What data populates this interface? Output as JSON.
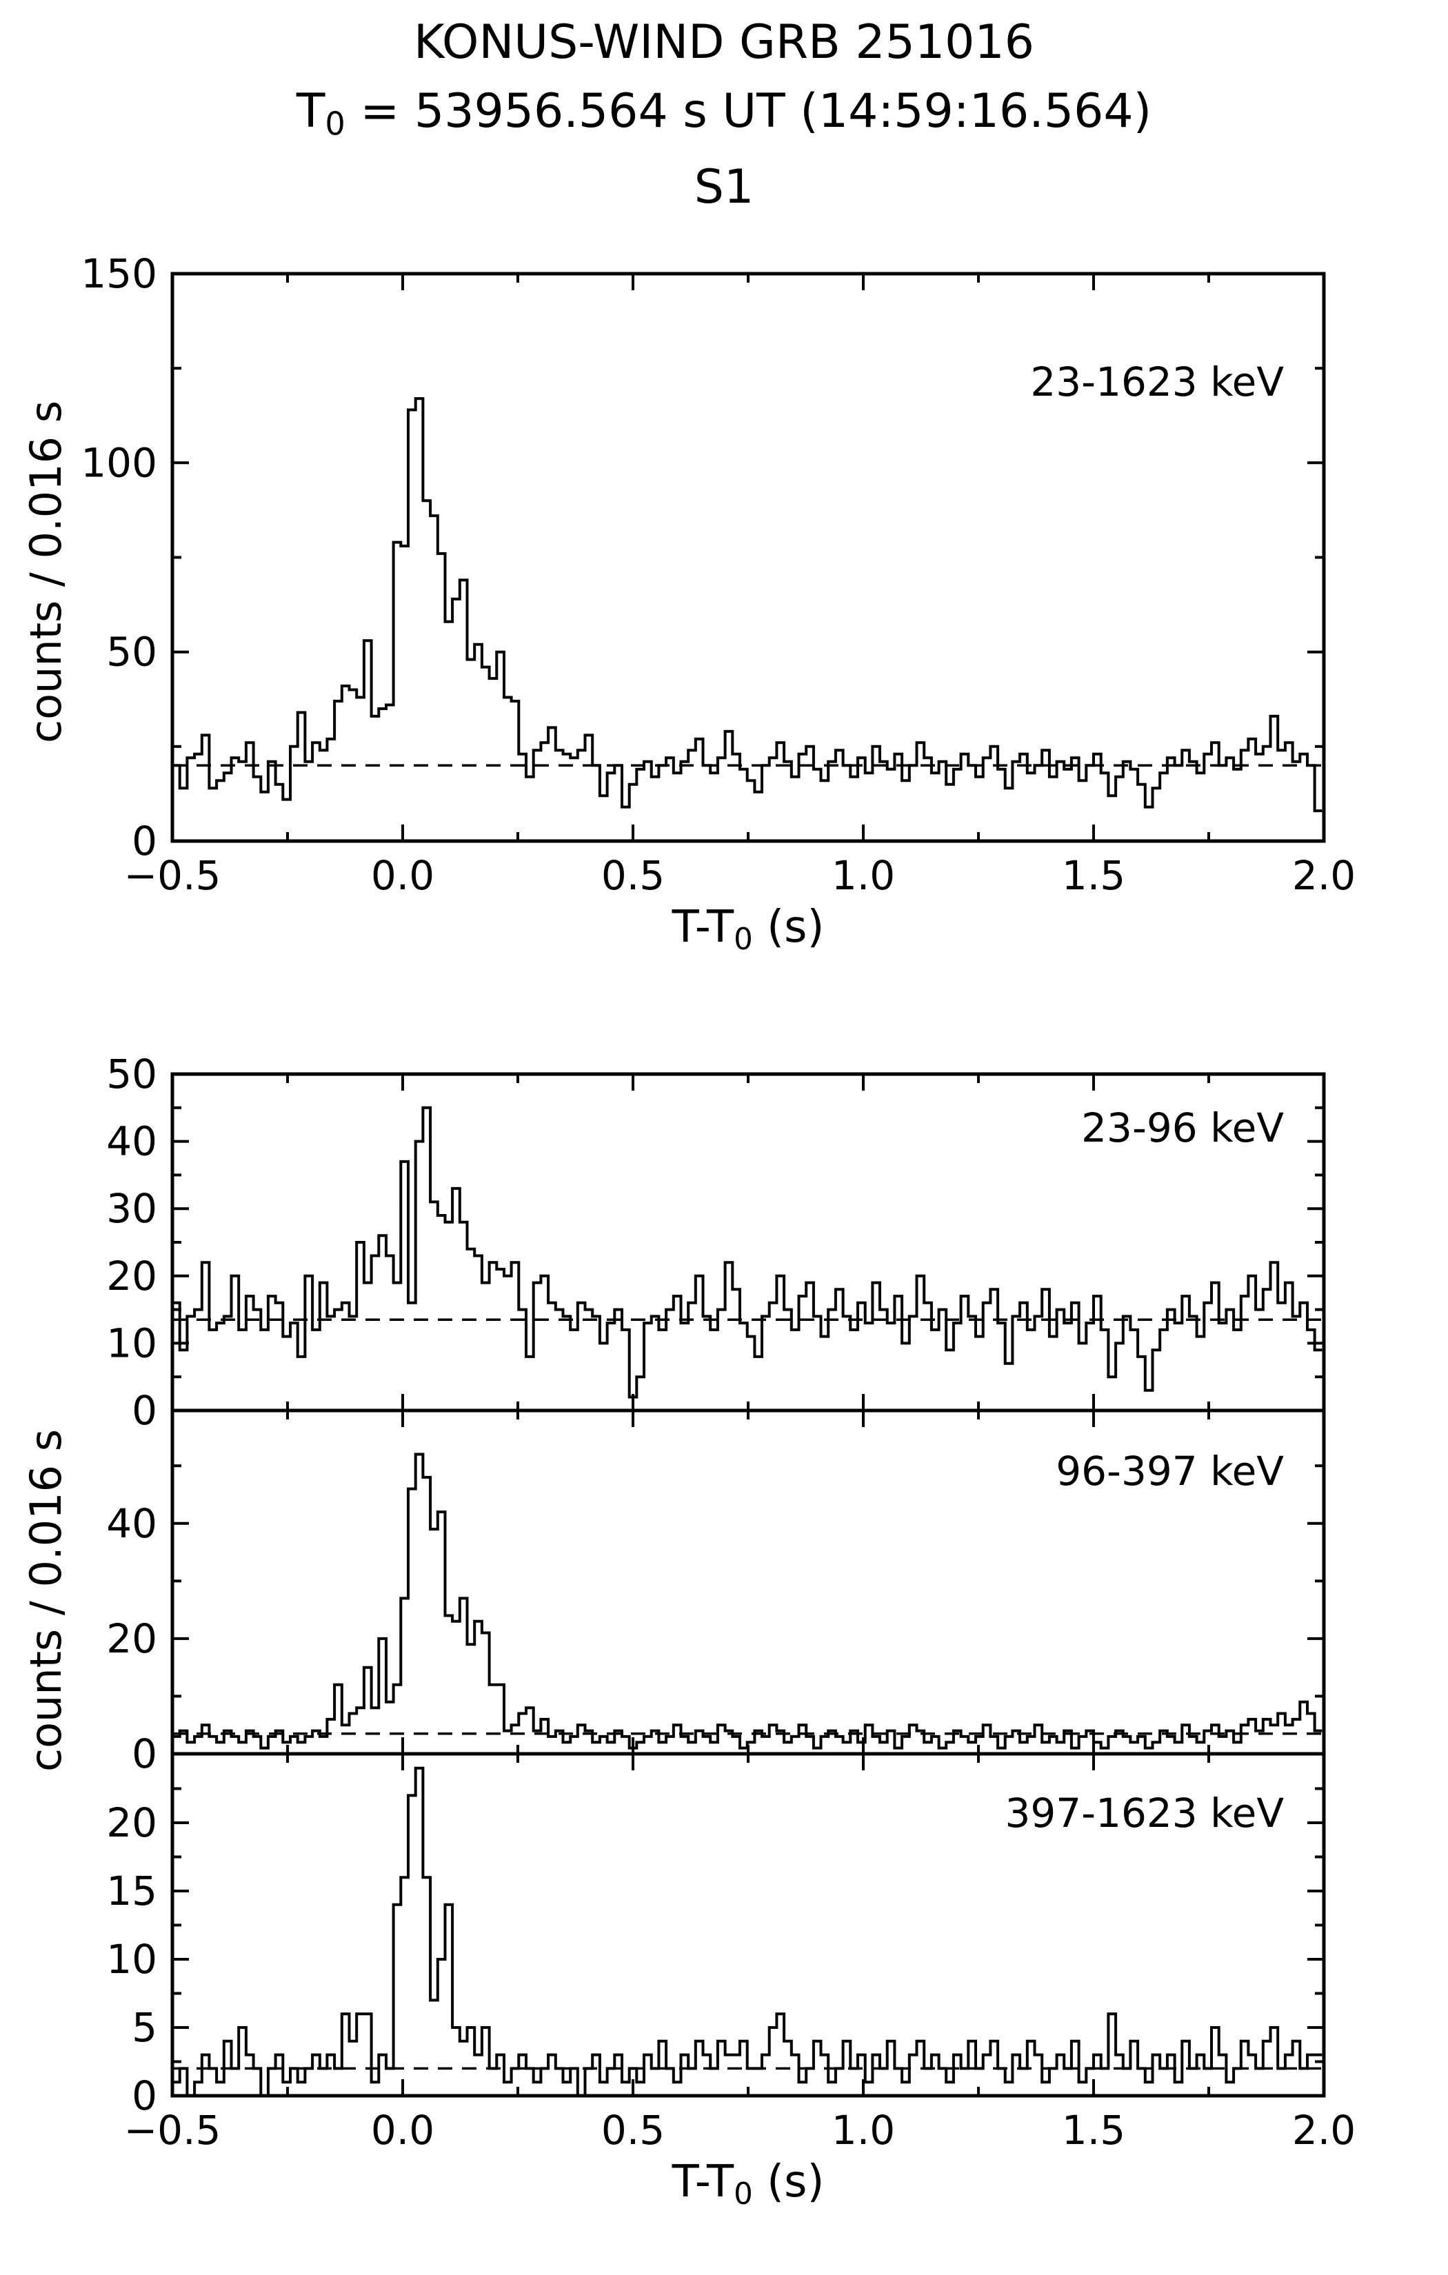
{
  "title": {
    "line1": "KONUS-WIND GRB 251016",
    "line2_prefix": "T",
    "line2_sub": "0",
    "line2_rest": " = 53956.564 s UT (14:59:16.564)",
    "line3": "S1"
  },
  "ylabel_top": "counts / 0.016 s",
  "ylabel_bottom": "counts / 0.016 s",
  "xlabel": {
    "prefix": "T-T",
    "sub": "0",
    "suffix": " (s)"
  },
  "colors": {
    "line": "#000000",
    "background": "#ffffff"
  },
  "chart_data": {
    "type": "line",
    "style": "step-histogram",
    "bin_width_s": 0.016,
    "t_start": -0.5,
    "xlim": [
      -0.5,
      2.0
    ],
    "xticks": [
      -0.5,
      0.0,
      0.5,
      1.0,
      1.5,
      2.0
    ],
    "xtick_labels": [
      "−0.5",
      "0.0",
      "0.5",
      "1.0",
      "1.5",
      "2.0"
    ],
    "xminor": [
      -0.25,
      0.25,
      0.75,
      1.25,
      1.75
    ],
    "xlabel": "T-T0 (s)",
    "ylabel": "counts / 0.016 s",
    "grid": false,
    "panels": [
      {
        "label": "23-1623 keV",
        "ylim": [
          0,
          150
        ],
        "yticks": [
          0,
          50,
          100,
          150
        ],
        "ytick_labels": [
          "0",
          "50",
          "100",
          "150"
        ],
        "yminor": [
          25,
          75,
          125
        ],
        "background_level": 20,
        "values": [
          20,
          14,
          22,
          23,
          28,
          14,
          16,
          18,
          22,
          21,
          26,
          17,
          13,
          21,
          15,
          11,
          25,
          34,
          21,
          26,
          24,
          27,
          37,
          41,
          40,
          38,
          53,
          33,
          35,
          36,
          79,
          78,
          114,
          117,
          90,
          86,
          76,
          58,
          64,
          69,
          48,
          52,
          46,
          43,
          50,
          38,
          37,
          23,
          17,
          24,
          26,
          30,
          24,
          23,
          22,
          24,
          28,
          20,
          12,
          18,
          20,
          9,
          15,
          19,
          21,
          17,
          20,
          22,
          18,
          21,
          24,
          27,
          20,
          18,
          22,
          29,
          23,
          19,
          16,
          13,
          20,
          22,
          26,
          21,
          17,
          23,
          25,
          19,
          16,
          21,
          24,
          20,
          17,
          22,
          18,
          25,
          21,
          19,
          23,
          16,
          20,
          26,
          22,
          18,
          21,
          15,
          19,
          23,
          20,
          17,
          22,
          25,
          19,
          14,
          21,
          23,
          18,
          20,
          24,
          17,
          21,
          19,
          22,
          16,
          20,
          23,
          18,
          12,
          17,
          21,
          19,
          15,
          9,
          14,
          18,
          22,
          20,
          24,
          21,
          18,
          23,
          26,
          20,
          22,
          19,
          24,
          27,
          23,
          25,
          33,
          24,
          26,
          21,
          23,
          20,
          8
        ]
      },
      {
        "label": "23-96 keV",
        "ylim": [
          0,
          50
        ],
        "yticks": [
          0,
          10,
          20,
          30,
          40,
          50
        ],
        "ytick_labels": [
          "0",
          "10",
          "20",
          "30",
          "40",
          "50"
        ],
        "yminor": [
          5,
          15,
          25,
          35,
          45
        ],
        "background_level": 13.5,
        "values": [
          16,
          9,
          14,
          15,
          22,
          12,
          13,
          14,
          20,
          12,
          17,
          15,
          12,
          17,
          16,
          11,
          13,
          8,
          20,
          12,
          19,
          14,
          15,
          16,
          14,
          25,
          19,
          23,
          26,
          23,
          19,
          37,
          16,
          40,
          45,
          31,
          29,
          28,
          33,
          28,
          24,
          23,
          19,
          22,
          21,
          20,
          22,
          15,
          8,
          19,
          20,
          16,
          15,
          14,
          12,
          16,
          15,
          14,
          10,
          13,
          15,
          12,
          2,
          5,
          13,
          14,
          12,
          15,
          17,
          13,
          16,
          20,
          14,
          12,
          15,
          22,
          18,
          13,
          11,
          8,
          14,
          16,
          20,
          15,
          12,
          17,
          19,
          14,
          11,
          15,
          18,
          14,
          12,
          16,
          13,
          19,
          15,
          13,
          17,
          10,
          14,
          20,
          16,
          12,
          15,
          9,
          13,
          17,
          14,
          11,
          16,
          18,
          13,
          7,
          14,
          16,
          12,
          14,
          18,
          11,
          15,
          13,
          16,
          10,
          13,
          17,
          12,
          5,
          10,
          14,
          12,
          8,
          3,
          9,
          12,
          15,
          13,
          17,
          14,
          11,
          16,
          19,
          13,
          15,
          12,
          17,
          20,
          15,
          18,
          22,
          16,
          19,
          14,
          16,
          12,
          9
        ]
      },
      {
        "label": "96-397 keV",
        "ylim": [
          0,
          59.6
        ],
        "yticks": [
          0,
          20,
          40
        ],
        "ytick_labels": [
          "0",
          "20",
          "40"
        ],
        "yminor": [
          10,
          30,
          50
        ],
        "background_level": 3.5,
        "values": [
          3,
          4,
          2,
          3,
          5,
          3,
          2,
          4,
          3,
          2,
          4,
          3,
          1,
          3,
          4,
          2,
          3,
          2,
          3,
          4,
          3,
          6,
          12,
          5,
          7,
          8,
          15,
          8,
          20,
          9,
          12,
          27,
          46,
          52,
          48,
          39,
          42,
          24,
          23,
          27,
          19,
          23,
          21,
          12,
          12,
          4,
          5,
          7,
          8,
          4,
          6,
          3,
          4,
          2,
          3,
          5,
          4,
          2,
          3,
          2,
          4,
          3,
          1,
          2,
          3,
          4,
          2,
          3,
          5,
          3,
          2,
          4,
          3,
          2,
          5,
          4,
          3,
          1,
          2,
          4,
          3,
          5,
          4,
          2,
          3,
          5,
          3,
          1,
          3,
          4,
          3,
          2,
          4,
          2,
          5,
          3,
          2,
          4,
          1,
          3,
          5,
          4,
          2,
          3,
          1,
          2,
          4,
          3,
          2,
          3,
          5,
          3,
          1,
          3,
          4,
          2,
          3,
          5,
          2,
          3,
          2,
          4,
          1,
          3,
          4,
          2,
          1,
          3,
          4,
          3,
          2,
          3,
          1,
          2,
          4,
          3,
          2,
          5,
          3,
          2,
          4,
          5,
          3,
          4,
          2,
          5,
          6,
          4,
          6,
          5,
          7,
          5,
          6,
          9,
          7,
          4
        ]
      },
      {
        "label": "397-1623 keV",
        "ylim": [
          0,
          25.05
        ],
        "yticks": [
          0,
          5,
          10,
          15,
          20
        ],
        "ytick_labels": [
          "0",
          "5",
          "10",
          "15",
          "20"
        ],
        "yminor": [
          2.5,
          7.5,
          12.5,
          17.5,
          22.5
        ],
        "background_level": 2,
        "values": [
          1,
          2,
          0,
          1,
          3,
          2,
          1,
          4,
          2,
          5,
          3,
          2,
          0,
          2,
          3,
          1,
          2,
          1,
          2,
          3,
          2,
          3,
          2,
          6,
          4,
          6,
          6,
          1,
          3,
          2,
          14,
          16,
          22,
          24,
          16,
          7,
          10,
          14,
          5,
          4,
          5,
          3,
          5,
          2,
          3,
          1,
          2,
          3,
          2,
          1,
          2,
          3,
          2,
          1,
          2,
          0,
          2,
          3,
          1,
          2,
          3,
          1,
          2,
          1,
          3,
          2,
          4,
          2,
          1,
          3,
          2,
          4,
          3,
          2,
          4,
          3,
          3,
          4,
          2,
          2,
          3,
          5,
          6,
          4,
          3,
          1,
          2,
          4,
          3,
          1,
          2,
          4,
          2,
          3,
          1,
          3,
          2,
          4,
          2,
          1,
          3,
          4,
          2,
          3,
          2,
          1,
          3,
          2,
          4,
          2,
          3,
          4,
          2,
          1,
          3,
          2,
          4,
          3,
          1,
          2,
          3,
          2,
          4,
          1,
          2,
          3,
          2,
          6,
          3,
          2,
          4,
          2,
          1,
          3,
          2,
          3,
          1,
          4,
          2,
          3,
          2,
          5,
          3,
          1,
          2,
          4,
          3,
          2,
          4,
          5,
          2,
          3,
          4,
          2,
          3,
          3
        ]
      }
    ]
  }
}
